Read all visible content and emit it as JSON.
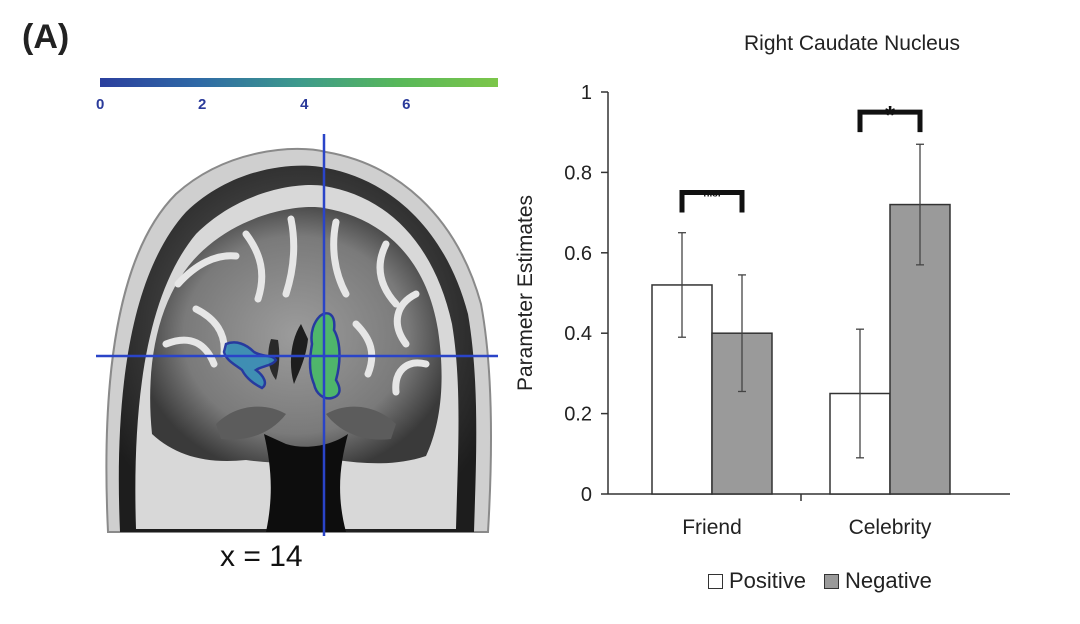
{
  "panel_label": "(A)",
  "colorbar": {
    "ticks": [
      "0",
      "2",
      "4",
      "6"
    ],
    "range": [
      0,
      7.8
    ]
  },
  "brain": {
    "slice_label": "x = 14"
  },
  "chart_data": {
    "type": "bar",
    "title": "Right Caudate Nucleus",
    "xlabel": "",
    "ylabel": "Parameter Estimates",
    "ylim": [
      0,
      1
    ],
    "yticks": [
      "0",
      "0.2",
      "0.4",
      "0.6",
      "0.8",
      "1"
    ],
    "categories": [
      "Friend",
      "Celebrity"
    ],
    "series": [
      {
        "name": "Positive",
        "values": [
          0.52,
          0.25
        ],
        "errors": [
          0.13,
          0.16
        ],
        "color": "#ffffff"
      },
      {
        "name": "Negative",
        "values": [
          0.4,
          0.72
        ],
        "errors": [
          0.145,
          0.15
        ],
        "color": "#9a9a9a"
      }
    ],
    "annotations": [
      {
        "category": "Friend",
        "text": "n.s."
      },
      {
        "category": "Celebrity",
        "text": "*"
      }
    ],
    "legend_position": "bottom"
  }
}
